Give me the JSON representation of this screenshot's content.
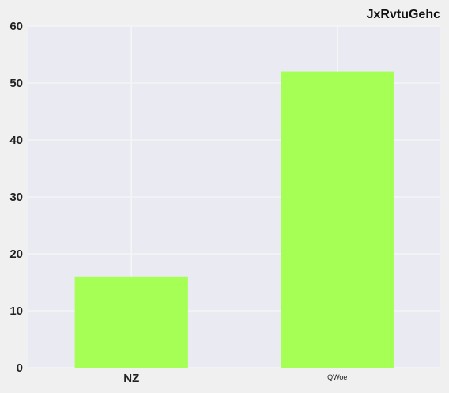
{
  "chart_data": {
    "type": "bar",
    "title": "JxRvtuGehc",
    "categories": [
      "NZ",
      "QWoe"
    ],
    "values": [
      16,
      52
    ],
    "xlabel": "",
    "ylabel": "",
    "ylim": [
      0,
      60
    ],
    "yticks": [
      0,
      10,
      20,
      30,
      40,
      50,
      60
    ],
    "grid": true,
    "legend": "none"
  },
  "colors": {
    "bar": "#a6ff55",
    "plot_background": "#eaeaf2",
    "page_background": "#f0f0f0",
    "grid": "#f5f5f8"
  }
}
